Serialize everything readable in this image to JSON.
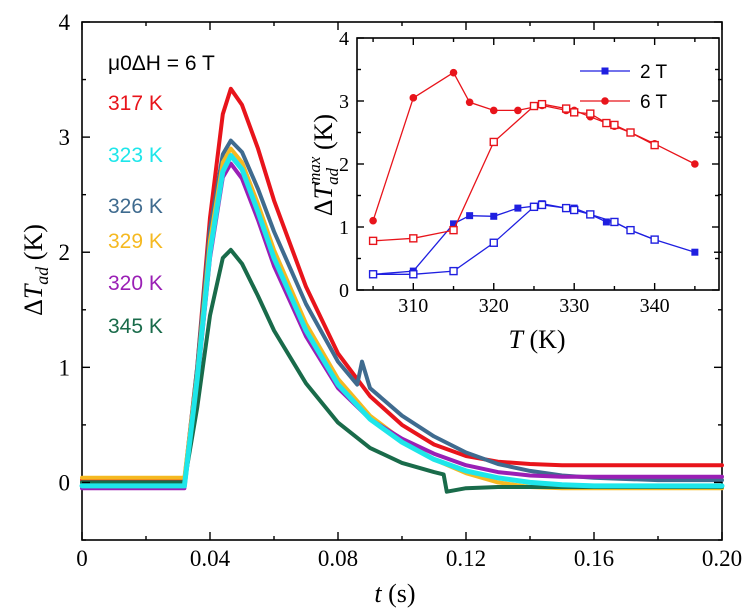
{
  "chart_data": [
    {
      "type": "line",
      "annotation": "μ0ΔH = 6 T",
      "xlabel": "t (s)",
      "ylabel": "ΔT_ad (K)",
      "xlim": [
        0,
        0.2
      ],
      "ylim": [
        -0.5,
        4
      ],
      "xticks": [
        "0",
        "0.04",
        "0.08",
        "0.12",
        "0.16",
        "0.20"
      ],
      "yticks": [
        "0",
        "1",
        "2",
        "3",
        "4"
      ],
      "series": [
        {
          "name": "317 K",
          "color": "#e8141b",
          "x": [
            0,
            0.032,
            0.036,
            0.04,
            0.044,
            0.0465,
            0.05,
            0.055,
            0.06,
            0.07,
            0.08,
            0.09,
            0.1,
            0.11,
            0.12,
            0.13,
            0.14,
            0.15,
            0.16,
            0.17,
            0.18,
            0.19,
            0.2
          ],
          "y": [
            0.02,
            0.02,
            1.0,
            2.3,
            3.2,
            3.42,
            3.28,
            2.9,
            2.45,
            1.7,
            1.12,
            0.75,
            0.5,
            0.33,
            0.23,
            0.18,
            0.16,
            0.15,
            0.15,
            0.15,
            0.15,
            0.15,
            0.15
          ]
        },
        {
          "name": "323 K",
          "color": "#1ee6ea",
          "x": [
            0,
            0.032,
            0.036,
            0.04,
            0.044,
            0.0465,
            0.05,
            0.055,
            0.06,
            0.07,
            0.08,
            0.09,
            0.1,
            0.11,
            0.12,
            0.13,
            0.14,
            0.15,
            0.16,
            0.17,
            0.18,
            0.19,
            0.2
          ],
          "y": [
            -0.03,
            -0.03,
            0.9,
            2.0,
            2.7,
            2.84,
            2.72,
            2.35,
            1.95,
            1.32,
            0.85,
            0.55,
            0.35,
            0.2,
            0.1,
            0.04,
            0.0,
            -0.02,
            -0.03,
            -0.03,
            -0.03,
            -0.03,
            -0.03
          ]
        },
        {
          "name": "326 K",
          "color": "#3f6b8f",
          "x": [
            0,
            0.032,
            0.036,
            0.04,
            0.044,
            0.0465,
            0.05,
            0.055,
            0.06,
            0.07,
            0.08,
            0.086,
            0.0875,
            0.09,
            0.1,
            0.11,
            0.12,
            0.13,
            0.14,
            0.15,
            0.16,
            0.17,
            0.18,
            0.19,
            0.2
          ],
          "y": [
            0.0,
            0.0,
            1.0,
            2.2,
            2.85,
            2.97,
            2.87,
            2.55,
            2.18,
            1.55,
            1.05,
            0.85,
            1.05,
            0.82,
            0.58,
            0.4,
            0.26,
            0.16,
            0.1,
            0.06,
            0.04,
            0.03,
            0.02,
            0.02,
            0.02
          ]
        },
        {
          "name": "329 K",
          "color": "#f5b921",
          "x": [
            0,
            0.032,
            0.036,
            0.04,
            0.044,
            0.0465,
            0.05,
            0.055,
            0.06,
            0.07,
            0.08,
            0.09,
            0.1,
            0.11,
            0.12,
            0.13,
            0.14,
            0.15,
            0.16,
            0.17,
            0.18,
            0.19,
            0.2
          ],
          "y": [
            0.04,
            0.04,
            0.95,
            2.1,
            2.78,
            2.9,
            2.78,
            2.42,
            2.02,
            1.38,
            0.9,
            0.58,
            0.37,
            0.2,
            0.08,
            0.0,
            -0.04,
            -0.05,
            -0.05,
            -0.05,
            -0.05,
            -0.05,
            -0.05
          ]
        },
        {
          "name": "320 K",
          "color": "#9a1fb5",
          "x": [
            0,
            0.032,
            0.036,
            0.04,
            0.044,
            0.0465,
            0.05,
            0.055,
            0.06,
            0.07,
            0.08,
            0.09,
            0.1,
            0.11,
            0.12,
            0.13,
            0.14,
            0.15,
            0.16,
            0.17,
            0.18,
            0.19,
            0.2
          ],
          "y": [
            -0.05,
            -0.05,
            0.85,
            1.95,
            2.65,
            2.77,
            2.64,
            2.28,
            1.88,
            1.27,
            0.82,
            0.55,
            0.38,
            0.25,
            0.15,
            0.09,
            0.06,
            0.05,
            0.05,
            0.05,
            0.05,
            0.05,
            0.05
          ]
        },
        {
          "name": "345 K",
          "color": "#196b4a",
          "x": [
            0,
            0.032,
            0.036,
            0.04,
            0.044,
            0.0465,
            0.05,
            0.055,
            0.06,
            0.07,
            0.08,
            0.09,
            0.1,
            0.11,
            0.113,
            0.114,
            0.12,
            0.13,
            0.14,
            0.15,
            0.16,
            0.17,
            0.18,
            0.19,
            0.2
          ],
          "y": [
            0.0,
            0.0,
            0.65,
            1.45,
            1.95,
            2.02,
            1.9,
            1.62,
            1.32,
            0.86,
            0.52,
            0.3,
            0.17,
            0.09,
            0.07,
            -0.08,
            -0.05,
            -0.04,
            -0.04,
            -0.04,
            -0.04,
            -0.04,
            -0.04,
            -0.04,
            -0.04
          ]
        }
      ]
    },
    {
      "type": "line",
      "xlabel": "T (K)",
      "ylabel": "ΔT_ad^max (K)",
      "xlim": [
        303,
        348
      ],
      "ylim": [
        0,
        4
      ],
      "xticks": [
        "310",
        "320",
        "330",
        "340"
      ],
      "yticks": [
        "0",
        "1",
        "2",
        "3",
        "4"
      ],
      "legend": "top-right",
      "series": [
        {
          "name": "2 T",
          "color": "#1f1fe0",
          "marker": "filled-square",
          "x": [
            305,
            310,
            315,
            317,
            320,
            323,
            325,
            326,
            329,
            330,
            332,
            334,
            335,
            337,
            340,
            345
          ],
          "y": [
            0.25,
            0.3,
            1.05,
            1.18,
            1.17,
            1.3,
            1.33,
            1.37,
            1.3,
            1.3,
            1.2,
            1.08,
            1.08,
            0.95,
            0.8,
            0.6
          ]
        },
        {
          "name": "",
          "color": "#1f1fe0",
          "marker": "open-square",
          "x": [
            305,
            310,
            315,
            320,
            325,
            326,
            329,
            330,
            332,
            335,
            337,
            340
          ],
          "y": [
            0.25,
            0.25,
            0.3,
            0.75,
            1.32,
            1.35,
            1.3,
            1.27,
            1.2,
            1.08,
            0.95,
            0.8
          ]
        },
        {
          "name": "6 T",
          "color": "#e8141b",
          "marker": "filled-circle",
          "x": [
            305,
            310,
            315,
            317,
            320,
            323,
            326,
            329,
            330,
            332,
            335,
            337,
            340,
            345
          ],
          "y": [
            1.1,
            3.05,
            3.45,
            2.98,
            2.85,
            2.85,
            2.93,
            2.85,
            2.85,
            2.75,
            2.6,
            2.5,
            2.32,
            2.0
          ]
        },
        {
          "name": "",
          "color": "#e8141b",
          "marker": "open-square",
          "x": [
            305,
            310,
            315,
            320,
            325,
            326,
            329,
            330,
            332,
            334,
            335,
            337,
            340
          ],
          "y": [
            0.78,
            0.82,
            0.95,
            2.35,
            2.92,
            2.95,
            2.88,
            2.82,
            2.8,
            2.65,
            2.62,
            2.5,
            2.3
          ]
        }
      ]
    }
  ]
}
